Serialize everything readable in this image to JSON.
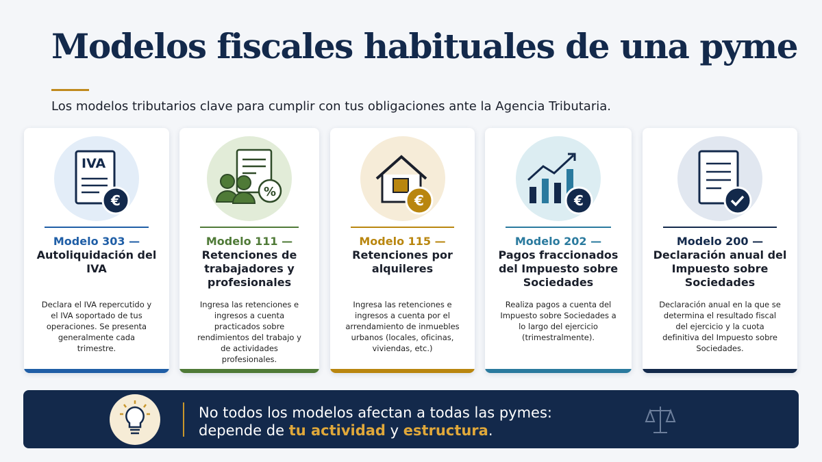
{
  "header": {
    "title": "Modelos fiscales habituales de una pyme",
    "subtitle": "Los modelos tributarios clave para cumplir con tus obligaciones ante la Agencia Tributaria."
  },
  "cards": [
    {
      "model": "Modelo 303 —",
      "name": "Autoliquidación del IVA",
      "description": "Declara el IVA repercutido y el IVA soportado de tus operaciones. Se presenta generalmente cada trimestre.",
      "icon_label": "IVA",
      "icon_badge": "€",
      "color": "#1f5ea6",
      "tint": "#e3edf8"
    },
    {
      "model": "Modelo 111 —",
      "name": "Retenciones de trabajadores y profesionales",
      "description": "Ingresa las retenciones e ingresos a cuenta practicados sobre rendimientos del trabajo y de actividades profesionales.",
      "icon_badge": "%",
      "color": "#4f7a37",
      "tint": "#e2ecd8"
    },
    {
      "model": "Modelo 115 —",
      "name": "Retenciones por alquileres",
      "description": "Ingresa las retenciones e ingresos a cuenta por el arrendamiento de inmuebles urbanos (locales, oficinas, viviendas, etc.)",
      "icon_badge": "€",
      "color": "#b9860f",
      "tint": "#f6ecd8"
    },
    {
      "model": "Modelo 202 —",
      "name": "Pagos fraccionados del Impuesto sobre Sociedades",
      "description": "Realiza pagos a cuenta del Impuesto sobre Sociedades a lo largo del ejercicio (trimestralmente).",
      "icon_badge": "€",
      "color": "#2a7a9e",
      "tint": "#dcedf2"
    },
    {
      "model": "Modelo 200 —",
      "name": "Declaración anual del Impuesto sobre Sociedades",
      "description": "Declaración anual en la que se determina el resultado fiscal del ejercicio y la cuota definitiva del Impuesto sobre Sociedades.",
      "color": "#13294b",
      "tint": "#e1e7f0"
    }
  ],
  "footer": {
    "line1": "No todos los modelos afectan a todas las pymes:",
    "line2_start": "depende de",
    "highlight1": "tu actividad",
    "connector": "y",
    "highlight2": "estructura",
    "end": "."
  }
}
